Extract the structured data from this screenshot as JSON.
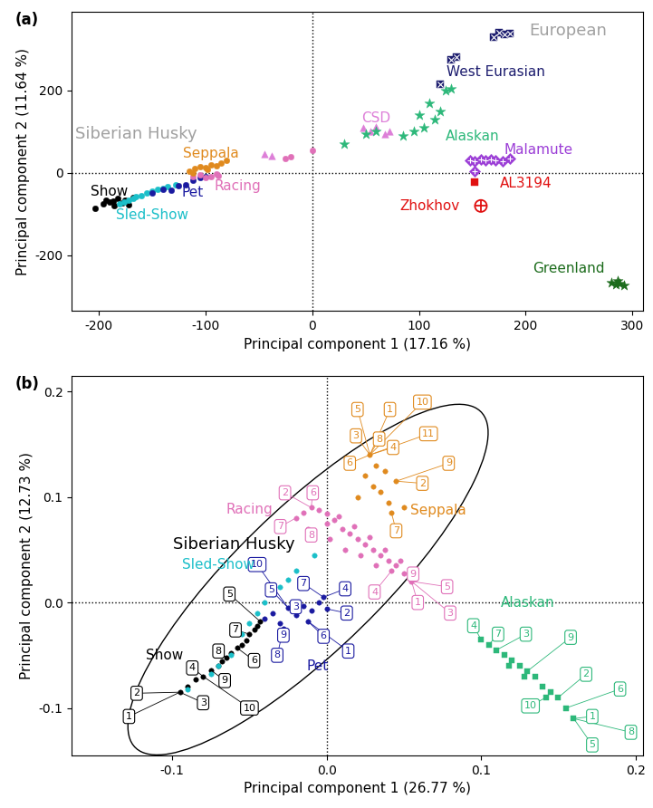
{
  "chart_data": [
    {
      "type": "scatter",
      "panel": "(a)",
      "x_label": "Principal component 1 (17.16 %)",
      "y_label": "Principal component 2 (11.64 %)",
      "xlim": [
        -225,
        310
      ],
      "ylim": [
        -335,
        390
      ],
      "xticks": [
        -200,
        -100,
        0,
        100,
        200,
        300
      ],
      "yticks": [
        -200,
        0,
        200
      ],
      "reference_lines": {
        "x": 0,
        "y": 0
      },
      "annotations": [
        {
          "text": "Siberian Husky",
          "x": -165,
          "y": 95,
          "color": "#a0a0a0"
        },
        {
          "text": "European",
          "x": 240,
          "y": 345,
          "color": "#a0a0a0"
        }
      ],
      "series": [
        {
          "name": "Show",
          "color": "#000000",
          "marker": "circle",
          "label_pos": [
            -190,
            -45
          ],
          "x": [
            -203,
            -196,
            -190,
            -186,
            -182,
            -178,
            -175,
            -172,
            -168,
            -185,
            -193
          ],
          "y": [
            -85,
            -75,
            -70,
            -68,
            -62,
            -72,
            -65,
            -78,
            -60,
            -80,
            -65
          ]
        },
        {
          "name": "Sled-Show",
          "color": "#1bbfc9",
          "marker": "circle",
          "label_pos": [
            -150,
            -102
          ],
          "x": [
            -180,
            -172,
            -165,
            -160,
            -155,
            -150,
            -145,
            -140,
            -135,
            -128,
            -176,
            -168
          ],
          "y": [
            -75,
            -65,
            -58,
            -55,
            -48,
            -45,
            -40,
            -38,
            -33,
            -28,
            -70,
            -62
          ]
        },
        {
          "name": "Pet",
          "color": "#1a1aa0",
          "marker": "circle",
          "label_pos": [
            -112,
            -48
          ],
          "x": [
            -150,
            -140,
            -132,
            -125,
            -118,
            -112,
            -105,
            -100
          ],
          "y": [
            -48,
            -40,
            -42,
            -30,
            -28,
            -18,
            -12,
            -10
          ]
        },
        {
          "name": "Racing",
          "color": "#e070b8",
          "marker": "circle",
          "label_pos": [
            -70,
            -32
          ],
          "x": [
            -112,
            -105,
            -100,
            -95,
            -90,
            -88,
            -25,
            -20,
            0
          ],
          "y": [
            -8,
            -5,
            -12,
            -10,
            -3,
            -6,
            35,
            40,
            55
          ]
        },
        {
          "name": "Seppala",
          "color": "#e08a1e",
          "marker": "circle",
          "label_pos": [
            -95,
            48
          ],
          "x": [
            -115,
            -110,
            -105,
            -100,
            -95,
            -90,
            -85,
            -80,
            -112,
            -98
          ],
          "y": [
            5,
            10,
            15,
            12,
            20,
            18,
            25,
            30,
            0,
            8
          ]
        },
        {
          "name": "CSD",
          "color": "#dd7fd8",
          "marker": "triangle",
          "label_pos": [
            60,
            132
          ],
          "x": [
            -45,
            -38,
            48,
            55,
            60,
            68,
            72
          ],
          "y": [
            45,
            42,
            110,
            100,
            112,
            95,
            100
          ]
        },
        {
          "name": "Alaskan",
          "color": "#2db87a",
          "marker": "star",
          "label_pos": [
            150,
            88
          ],
          "x": [
            30,
            50,
            60,
            85,
            95,
            105,
            115,
            120,
            125,
            130,
            110,
            100
          ],
          "y": [
            70,
            95,
            100,
            90,
            100,
            110,
            130,
            150,
            200,
            205,
            170,
            140
          ]
        },
        {
          "name": "West Eurasian",
          "color": "#1c1c6e",
          "marker": "square_cross",
          "label_pos": [
            172,
            245
          ],
          "x": [
            120,
            130,
            135,
            170,
            175,
            180,
            185
          ],
          "y": [
            215,
            275,
            280,
            330,
            340,
            335,
            338
          ]
        },
        {
          "name": "Malamute",
          "color": "#9b3dd6",
          "marker": "diamond_plus",
          "label_pos": [
            212,
            55
          ],
          "x": [
            148,
            152,
            158,
            162,
            167,
            172,
            178,
            185,
            152
          ],
          "y": [
            30,
            28,
            32,
            30,
            33,
            30,
            28,
            35,
            5
          ]
        },
        {
          "name": "AL3194",
          "color": "#e01010",
          "marker": "square",
          "label_pos": [
            200,
            -25
          ],
          "x": [
            152
          ],
          "y": [
            -22
          ]
        },
        {
          "name": "Zhokhov",
          "color": "#e01010",
          "marker": "circle_cross",
          "label_pos": [
            110,
            -80
          ],
          "x": [
            158
          ],
          "y": [
            -80
          ]
        },
        {
          "name": "Greenland",
          "color": "#1b6b1b",
          "marker": "star",
          "label_pos": [
            240,
            -232
          ],
          "x": [
            280,
            284,
            288,
            292,
            286
          ],
          "y": [
            -265,
            -270,
            -268,
            -272,
            -262
          ]
        }
      ]
    },
    {
      "type": "scatter",
      "panel": "(b)",
      "x_label": "Principal component 1 (26.77 %)",
      "y_label": "Principal component 2 (12.73 %)",
      "xlim": [
        -0.165,
        0.205
      ],
      "ylim": [
        -0.145,
        0.215
      ],
      "xticks": [
        -0.1,
        {
          "value": 0,
          "label": "0.0"
        },
        0.1,
        0.2
      ],
      "yticks": [
        -0.1,
        {
          "value": 0,
          "label": "0.0"
        },
        0.1,
        0.2
      ],
      "reference_lines": {
        "x": 0,
        "y": 0
      },
      "ellipse": [
        "Show",
        "Sled-Show",
        "Pet",
        "Racing",
        "Seppala"
      ],
      "annotations": [
        {
          "text": "Siberian Husky",
          "x": -0.06,
          "y": 0.055,
          "color": "#000000"
        }
      ],
      "series": [
        {
          "name": "Show",
          "color": "#000000",
          "marker": "circle",
          "label_pos": [
            -0.105,
            -0.05
          ],
          "x": [
            -0.095,
            -0.09,
            -0.085,
            -0.08,
            -0.075,
            -0.07,
            -0.068,
            -0.065,
            -0.062,
            -0.058,
            -0.055,
            -0.052,
            -0.05,
            -0.047,
            -0.045,
            -0.043
          ],
          "y": [
            -0.085,
            -0.08,
            -0.073,
            -0.07,
            -0.064,
            -0.06,
            -0.056,
            -0.052,
            -0.048,
            -0.043,
            -0.04,
            -0.036,
            -0.03,
            -0.026,
            -0.022,
            -0.018
          ],
          "boxes": [
            {
              "label": 1,
              "x": -0.128,
              "y": -0.108
            },
            {
              "label": 2,
              "x": -0.123,
              "y": -0.086
            },
            {
              "label": 3,
              "x": -0.08,
              "y": -0.095
            },
            {
              "label": 4,
              "x": -0.087,
              "y": -0.062
            },
            {
              "label": 5,
              "x": -0.063,
              "y": 0.008
            },
            {
              "label": 6,
              "x": -0.047,
              "y": -0.055
            },
            {
              "label": 7,
              "x": -0.059,
              "y": -0.026
            },
            {
              "label": 8,
              "x": -0.07,
              "y": -0.046
            },
            {
              "label": 9,
              "x": -0.066,
              "y": -0.074
            },
            {
              "label": 10,
              "x": -0.05,
              "y": -0.1
            }
          ]
        },
        {
          "name": "Sled-Show",
          "color": "#1bbfc9",
          "marker": "circle",
          "label_pos": [
            -0.07,
            0.036
          ],
          "x": [
            -0.09,
            -0.075,
            -0.07,
            -0.062,
            -0.055,
            -0.05,
            -0.045,
            -0.04,
            -0.035,
            -0.03,
            -0.025,
            -0.02,
            -0.008
          ],
          "y": [
            -0.082,
            -0.068,
            -0.06,
            -0.05,
            -0.03,
            -0.02,
            -0.01,
            0.0,
            0.008,
            0.015,
            0.022,
            0.03,
            0.045
          ]
        },
        {
          "name": "Pet",
          "color": "#1a1aa0",
          "marker": "circle",
          "label_pos": [
            -0.006,
            -0.06
          ],
          "x": [
            -0.04,
            -0.035,
            -0.03,
            -0.025,
            -0.02,
            -0.015,
            -0.01,
            -0.005,
            0.0,
            -0.028,
            -0.012,
            -0.002
          ],
          "y": [
            -0.015,
            -0.01,
            -0.02,
            -0.005,
            -0.012,
            -0.003,
            -0.008,
            0.0,
            -0.006,
            -0.025,
            -0.018,
            0.005
          ],
          "boxes": [
            {
              "label": 1,
              "x": 0.014,
              "y": -0.046
            },
            {
              "label": 2,
              "x": 0.013,
              "y": -0.01
            },
            {
              "label": 3,
              "x": -0.02,
              "y": -0.004
            },
            {
              "label": 4,
              "x": 0.012,
              "y": 0.013
            },
            {
              "label": 5,
              "x": -0.036,
              "y": 0.012
            },
            {
              "label": 6,
              "x": -0.002,
              "y": -0.032
            },
            {
              "label": 7,
              "x": -0.015,
              "y": 0.018
            },
            {
              "label": 8,
              "x": -0.032,
              "y": -0.05
            },
            {
              "label": 9,
              "x": -0.028,
              "y": -0.031
            },
            {
              "label": 10,
              "x": -0.045,
              "y": 0.036
            }
          ]
        },
        {
          "name": "Racing",
          "color": "#e070b8",
          "marker": "circle",
          "label_pos": [
            -0.05,
            0.088
          ],
          "x": [
            -0.02,
            -0.015,
            -0.01,
            -0.005,
            0.0,
            0.005,
            0.01,
            0.015,
            0.02,
            0.025,
            0.03,
            0.035,
            0.04,
            0.045,
            0.05,
            0.055,
            -0.012,
            0.0,
            0.008,
            0.018,
            0.028,
            0.038,
            0.048,
            0.002,
            0.012,
            0.022,
            0.032,
            0.042
          ],
          "y": [
            0.08,
            0.085,
            0.09,
            0.088,
            0.084,
            0.078,
            0.07,
            0.065,
            0.06,
            0.055,
            0.05,
            0.045,
            0.04,
            0.035,
            0.028,
            0.02,
            0.07,
            0.075,
            0.082,
            0.072,
            0.062,
            0.05,
            0.04,
            0.06,
            0.05,
            0.045,
            0.035,
            0.03
          ],
          "boxes": [
            {
              "label": 1,
              "x": 0.059,
              "y": 0.0
            },
            {
              "label": 2,
              "x": -0.027,
              "y": 0.104
            },
            {
              "label": 3,
              "x": 0.08,
              "y": -0.01
            },
            {
              "label": 4,
              "x": 0.031,
              "y": 0.01
            },
            {
              "label": 5,
              "x": 0.078,
              "y": 0.015
            },
            {
              "label": 6,
              "x": -0.009,
              "y": 0.104
            },
            {
              "label": 7,
              "x": -0.03,
              "y": 0.072
            },
            {
              "label": 8,
              "x": -0.01,
              "y": 0.064
            },
            {
              "label": 9,
              "x": 0.056,
              "y": 0.027
            }
          ]
        },
        {
          "name": "Seppala",
          "color": "#e08a1e",
          "marker": "circle",
          "label_pos": [
            0.072,
            0.087
          ],
          "x": [
            0.02,
            0.025,
            0.03,
            0.032,
            0.035,
            0.038,
            0.04,
            0.045,
            0.05,
            0.028,
            0.042
          ],
          "y": [
            0.1,
            0.12,
            0.11,
            0.13,
            0.105,
            0.125,
            0.095,
            0.115,
            0.09,
            0.14,
            0.085
          ],
          "boxes": [
            {
              "label": 1,
              "x": 0.041,
              "y": 0.183
            },
            {
              "label": 2,
              "x": 0.062,
              "y": 0.113
            },
            {
              "label": 3,
              "x": 0.019,
              "y": 0.158
            },
            {
              "label": 4,
              "x": 0.043,
              "y": 0.147
            },
            {
              "label": 5,
              "x": 0.02,
              "y": 0.183
            },
            {
              "label": 6,
              "x": 0.015,
              "y": 0.132
            },
            {
              "label": 7,
              "x": 0.045,
              "y": 0.068
            },
            {
              "label": 8,
              "x": 0.034,
              "y": 0.155
            },
            {
              "label": 9,
              "x": 0.079,
              "y": 0.132
            },
            {
              "label": 10,
              "x": 0.062,
              "y": 0.19
            },
            {
              "label": 11,
              "x": 0.066,
              "y": 0.16
            }
          ]
        },
        {
          "name": "Alaskan",
          "color": "#2db87a",
          "marker": "square",
          "label_pos": [
            0.13,
            0.0
          ],
          "x": [
            0.1,
            0.105,
            0.11,
            0.115,
            0.12,
            0.125,
            0.13,
            0.135,
            0.14,
            0.145,
            0.15,
            0.155,
            0.16,
            0.118,
            0.128,
            0.142
          ],
          "y": [
            -0.035,
            -0.04,
            -0.045,
            -0.05,
            -0.055,
            -0.06,
            -0.065,
            -0.07,
            -0.08,
            -0.085,
            -0.09,
            -0.1,
            -0.11,
            -0.06,
            -0.07,
            -0.09
          ],
          "boxes": [
            {
              "label": 1,
              "x": 0.172,
              "y": -0.108
            },
            {
              "label": 2,
              "x": 0.168,
              "y": -0.068
            },
            {
              "label": 3,
              "x": 0.129,
              "y": -0.03
            },
            {
              "label": 4,
              "x": 0.095,
              "y": -0.022
            },
            {
              "label": 5,
              "x": 0.172,
              "y": -0.135
            },
            {
              "label": 6,
              "x": 0.19,
              "y": -0.082
            },
            {
              "label": 7,
              "x": 0.111,
              "y": -0.03
            },
            {
              "label": 8,
              "x": 0.197,
              "y": -0.123
            },
            {
              "label": 9,
              "x": 0.158,
              "y": -0.033
            },
            {
              "label": 10,
              "x": 0.132,
              "y": -0.098
            }
          ]
        }
      ]
    }
  ]
}
